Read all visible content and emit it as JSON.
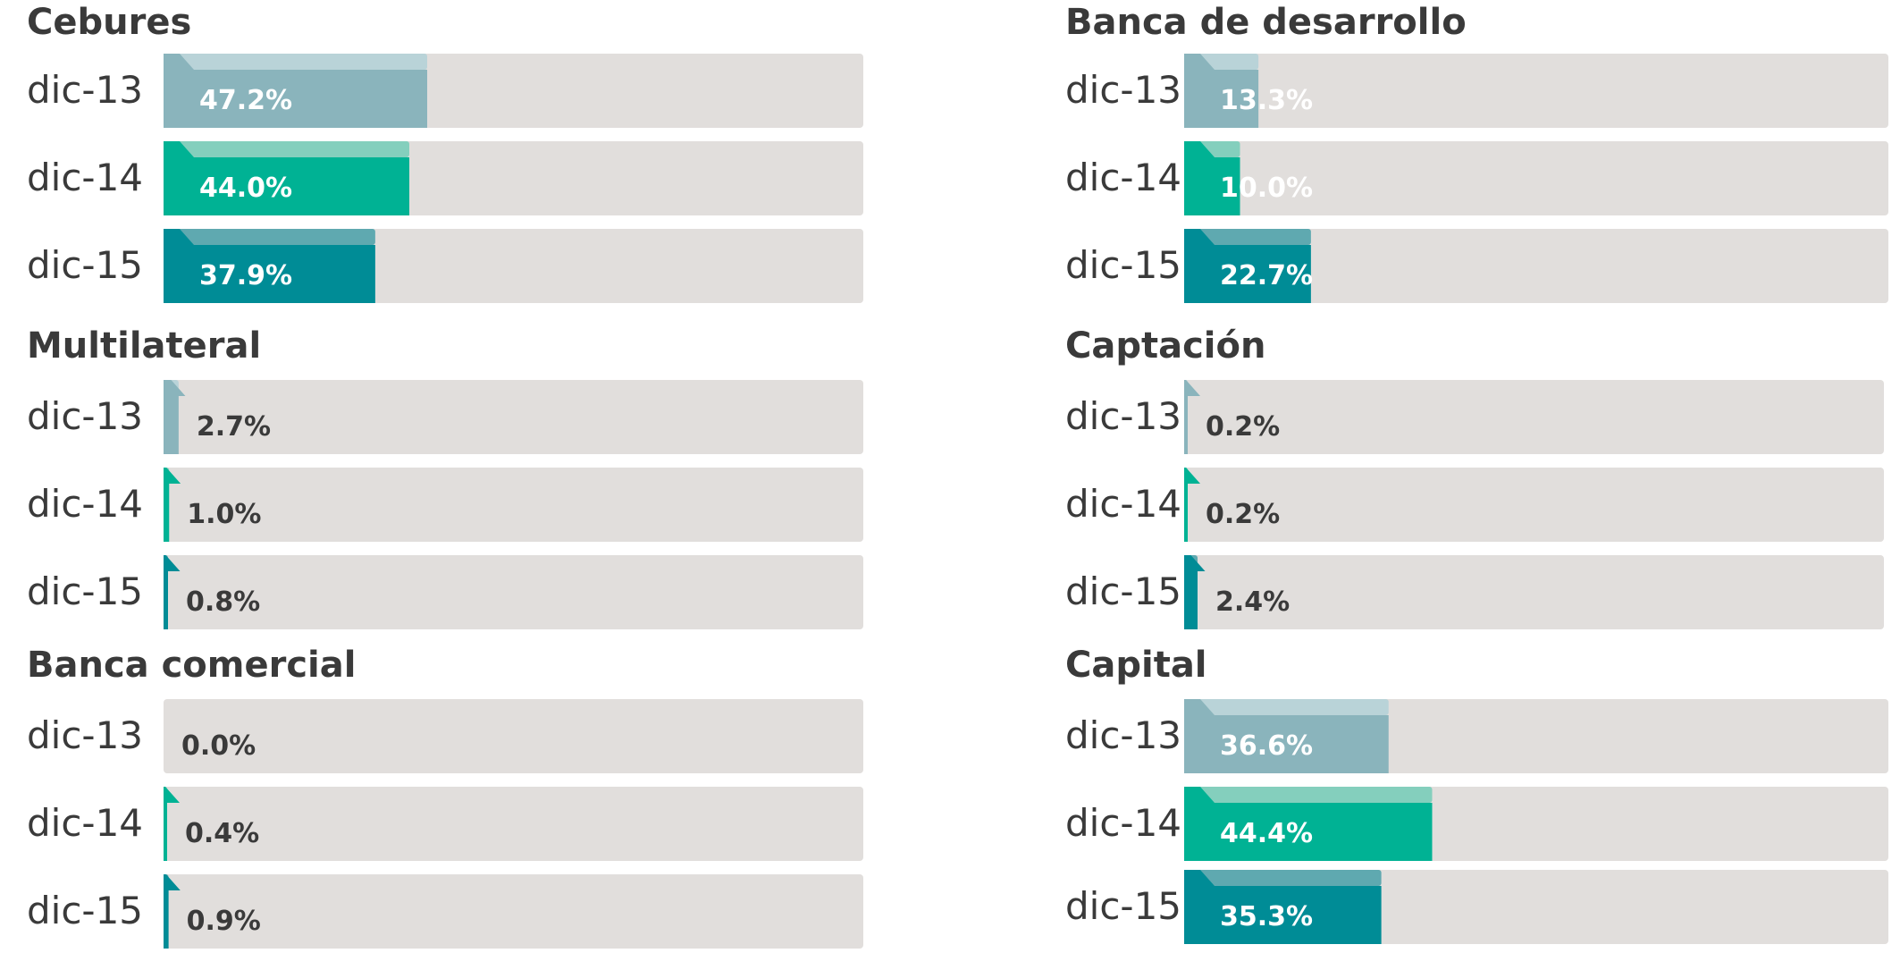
{
  "chart_data": [
    {
      "type": "bar",
      "title": "Cebures",
      "categories": [
        "dic-13",
        "dic-14",
        "dic-15"
      ],
      "values": [
        47.2,
        44.0,
        37.9
      ],
      "value_labels": [
        "47.2%",
        "44.0%",
        "37.9%"
      ],
      "xlim": [
        0,
        100
      ]
    },
    {
      "type": "bar",
      "title": "Multilateral",
      "categories": [
        "dic-13",
        "dic-14",
        "dic-15"
      ],
      "values": [
        2.7,
        1.0,
        0.8
      ],
      "value_labels": [
        "2.7%",
        "1.0%",
        "0.8%"
      ],
      "xlim": [
        0,
        100
      ]
    },
    {
      "type": "bar",
      "title": "Banca comercial",
      "categories": [
        "dic-13",
        "dic-14",
        "dic-15"
      ],
      "values": [
        0.0,
        0.4,
        0.9
      ],
      "value_labels": [
        "0.0%",
        "0.4%",
        "0.9%"
      ],
      "xlim": [
        0,
        100
      ]
    },
    {
      "type": "bar",
      "title": "Banca de desarrollo",
      "categories": [
        "dic-13",
        "dic-14",
        "dic-15"
      ],
      "values": [
        13.3,
        10.0,
        22.7
      ],
      "value_labels": [
        "13.3%",
        "10.0%",
        "22.7%"
      ],
      "xlim": [
        0,
        100
      ]
    },
    {
      "type": "bar",
      "title": "Captación",
      "categories": [
        "dic-13",
        "dic-14",
        "dic-15"
      ],
      "values": [
        0.2,
        0.2,
        2.4
      ],
      "value_labels": [
        "0.2%",
        "0.2%",
        "2.4%"
      ],
      "xlim": [
        0,
        100
      ]
    },
    {
      "type": "bar",
      "title": "Capital",
      "categories": [
        "dic-13",
        "dic-14",
        "dic-15"
      ],
      "values": [
        36.6,
        44.4,
        35.3
      ],
      "value_labels": [
        "36.6%",
        "44.4%",
        "35.3%"
      ],
      "xlim": [
        0,
        100
      ]
    }
  ],
  "colors": {
    "track": "#e1dedc",
    "series": [
      "#8ab4bc",
      "#00b294",
      "#008c96"
    ],
    "series_light": [
      "#b9d3d8",
      "#84cfbd",
      "#5fa9b0"
    ],
    "label_inside": "#ffffff",
    "label_outside": "#3a3a3a",
    "text": "#3a3a3a"
  }
}
